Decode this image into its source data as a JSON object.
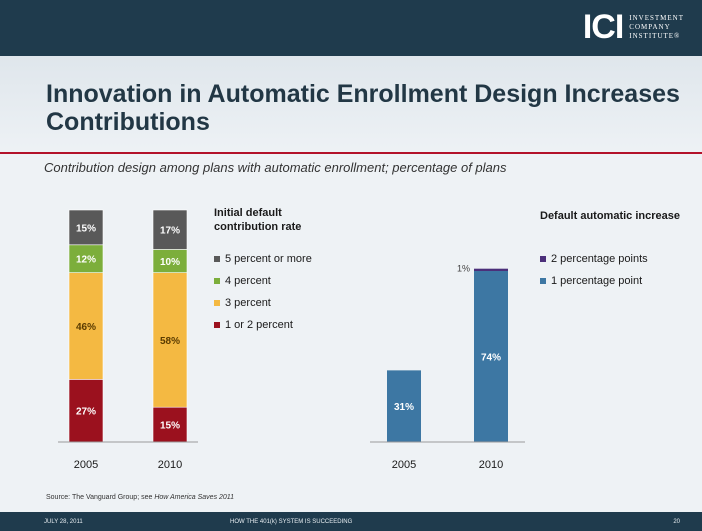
{
  "header": {
    "logo_mark": "ICI",
    "logo_lines": [
      "INVESTMENT",
      "COMPANY",
      "INSTITUTE®"
    ]
  },
  "title": "Innovation in Automatic Enrollment Design Increases Contributions",
  "subtitle": "Contribution design among plans with automatic enrollment; percentage of plans",
  "source": {
    "prefix": "Source: The Vanguard Group; see ",
    "italic": "How America Saves 2011"
  },
  "footer": {
    "date": "JULY 28, 2011",
    "center": "HOW THE 401(k) SYSTEM IS SUCCEEDING",
    "page": "20"
  },
  "colors": {
    "five_plus": "#595959",
    "four": "#7cae3b",
    "three": "#f4b942",
    "one_two": "#9b111e",
    "two_pp": "#4b2f7a",
    "one_pp": "#3d77a3"
  },
  "chart_data": [
    {
      "type": "bar",
      "stacked": true,
      "legend_title": "Initial default contribution rate",
      "categories": [
        "2005",
        "2010"
      ],
      "ylim": [
        0,
        100
      ],
      "series": [
        {
          "name": "1 or 2 percent",
          "values": [
            27,
            15
          ],
          "labels": [
            "27%",
            "15%"
          ]
        },
        {
          "name": "3 percent",
          "values": [
            46,
            58
          ],
          "labels": [
            "46%",
            "58%"
          ]
        },
        {
          "name": "4 percent",
          "values": [
            12,
            10
          ],
          "labels": [
            "12%",
            "10%"
          ]
        },
        {
          "name": "5 percent or more",
          "values": [
            15,
            17
          ],
          "labels": [
            "15%",
            "17%"
          ]
        }
      ]
    },
    {
      "type": "bar",
      "stacked": true,
      "legend_title": "Default automatic increase",
      "categories": [
        "2005",
        "2010"
      ],
      "ylim": [
        0,
        100
      ],
      "series": [
        {
          "name": "1 percentage point",
          "values": [
            31,
            74
          ],
          "labels": [
            "31%",
            "74%"
          ]
        },
        {
          "name": "2 percentage points",
          "values": [
            0,
            1
          ],
          "labels": [
            "",
            "1%"
          ]
        }
      ]
    }
  ]
}
